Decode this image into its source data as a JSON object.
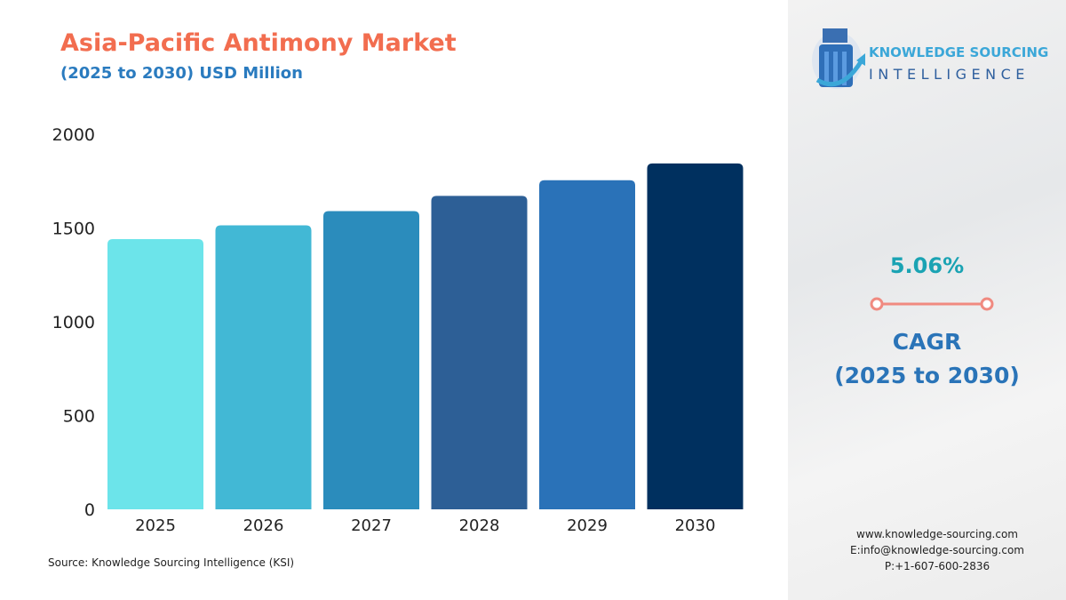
{
  "chart_data": {
    "type": "bar",
    "title": "Asia-Pacific Antimony Market",
    "subtitle": "(2025 to 2030) USD Million",
    "categories": [
      "2025",
      "2026",
      "2027",
      "2028",
      "2029",
      "2030"
    ],
    "values": [
      1441,
      1514,
      1590,
      1671,
      1755,
      1844
    ],
    "ylim": [
      0,
      2000
    ],
    "yticks": [
      0,
      500,
      1000,
      1500,
      2000
    ],
    "grid": false,
    "bar_colors": [
      "#6ce4ea",
      "#42b8d5",
      "#2b8cbc",
      "#2d5f96",
      "#2a72b8",
      "#00305f"
    ]
  },
  "source": "Source: Knowledge Sourcing Intelligence (KSI)",
  "logo": {
    "line1": "KNOWLEDGE SOURCING",
    "line2": "INTELLIGENCE"
  },
  "cagr": {
    "value": "5.06%",
    "label": "CAGR",
    "period": "(2025 to 2030)",
    "accent": "#f08a80"
  },
  "contact": {
    "web": "www.knowledge-sourcing.com",
    "email": "E:info@knowledge-sourcing.com",
    "phone": "P:+1-607-600-2836"
  }
}
